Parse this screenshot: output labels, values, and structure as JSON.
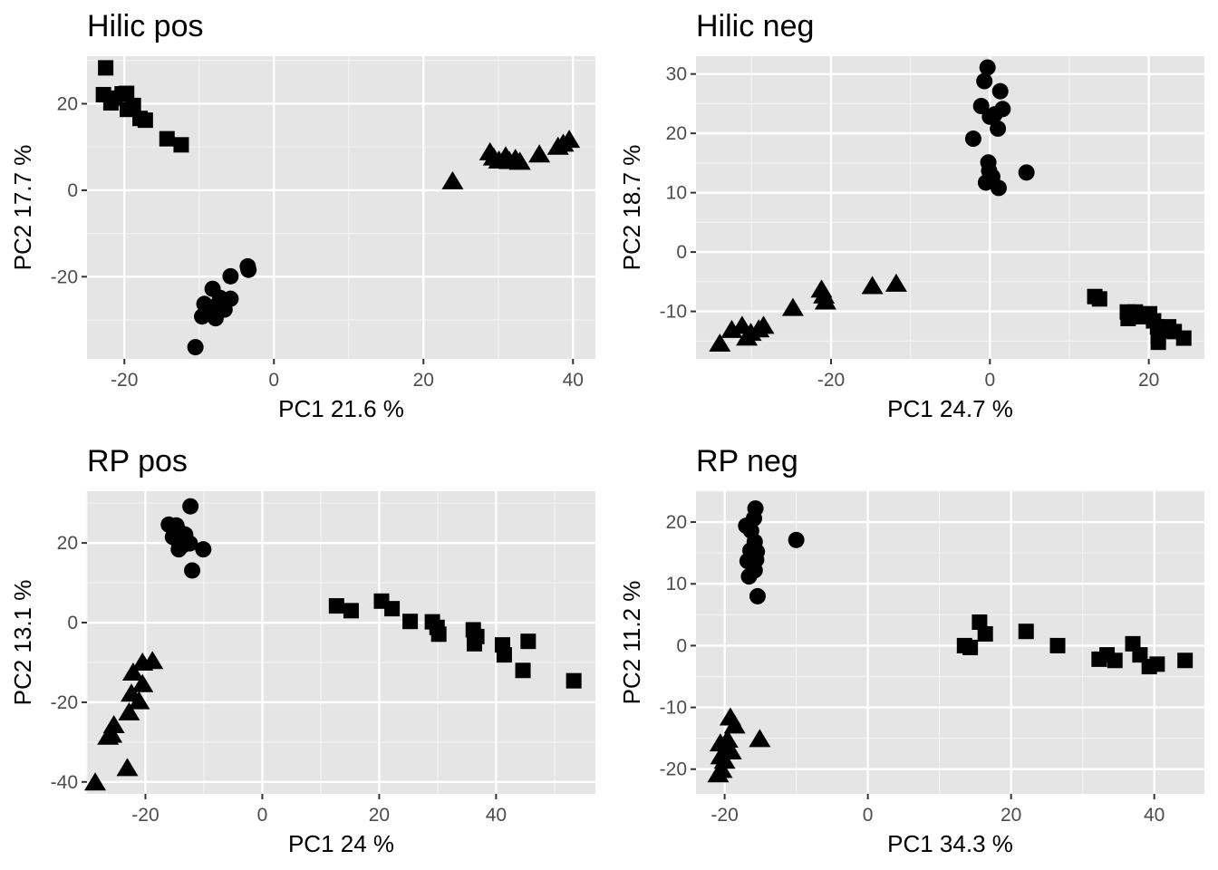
{
  "chart_data": [
    {
      "type": "scatter",
      "title": "Hilic pos",
      "xlabel": "PC1 21.6 %",
      "ylabel": "PC2 17.7 %",
      "xlim": [
        -25,
        43
      ],
      "ylim": [
        -39,
        31
      ],
      "xticks": [
        -20,
        0,
        20,
        40
      ],
      "yticks": [
        -20,
        0,
        20
      ],
      "grid": true,
      "series": [
        {
          "shape": "square",
          "points": [
            [
              -22.5,
              28.3
            ],
            [
              -22.8,
              22.1
            ],
            [
              -21.8,
              20.2
            ],
            [
              -21.3,
              21.3
            ],
            [
              -20.3,
              22.3
            ],
            [
              -19.7,
              22.4
            ],
            [
              -19.6,
              18.7
            ],
            [
              -18.8,
              19.6
            ],
            [
              -17.9,
              16.6
            ],
            [
              -17.2,
              16.2
            ],
            [
              -14.3,
              11.9
            ],
            [
              -12.4,
              10.5
            ]
          ]
        },
        {
          "shape": "triangle",
          "points": [
            [
              23.9,
              2.1
            ],
            [
              28.9,
              8.8
            ],
            [
              29.4,
              7.6
            ],
            [
              30.1,
              6.9
            ],
            [
              31.0,
              7.9
            ],
            [
              31.5,
              6.8
            ],
            [
              32.3,
              7.3
            ],
            [
              32.9,
              6.6
            ],
            [
              35.5,
              8.3
            ],
            [
              38.0,
              10.1
            ],
            [
              38.7,
              10.8
            ],
            [
              39.5,
              11.7
            ]
          ]
        },
        {
          "shape": "circle",
          "points": [
            [
              -10.5,
              -36.3
            ],
            [
              -9.6,
              -29.2
            ],
            [
              -9.3,
              -26.3
            ],
            [
              -8.8,
              -27.2
            ],
            [
              -8.2,
              -22.8
            ],
            [
              -8.0,
              -27.0
            ],
            [
              -7.8,
              -29.6
            ],
            [
              -7.2,
              -24.9
            ],
            [
              -6.6,
              -27.6
            ],
            [
              -5.8,
              -25.1
            ],
            [
              -5.8,
              -19.9
            ],
            [
              -3.4,
              -18.4
            ],
            [
              -3.5,
              -17.6
            ]
          ]
        }
      ]
    },
    {
      "type": "scatter",
      "title": "Hilic neg",
      "xlabel": "PC1 24.7 %",
      "ylabel": "PC2 18.7 %",
      "xlim": [
        -37,
        27
      ],
      "ylim": [
        -18,
        33
      ],
      "xticks": [
        -20,
        0,
        20
      ],
      "yticks": [
        -10,
        0,
        10,
        20,
        30
      ],
      "grid": true,
      "series": [
        {
          "shape": "circle",
          "points": [
            [
              -0.3,
              31.1
            ],
            [
              -0.7,
              28.8
            ],
            [
              1.3,
              27.1
            ],
            [
              -1.1,
              24.6
            ],
            [
              0.6,
              23.2
            ],
            [
              1.6,
              24.1
            ],
            [
              0.0,
              22.8
            ],
            [
              1.0,
              20.8
            ],
            [
              -2.1,
              19.1
            ],
            [
              -0.2,
              15.1
            ],
            [
              -0.1,
              13.7
            ],
            [
              4.6,
              13.4
            ],
            [
              0.3,
              12.7
            ],
            [
              -0.5,
              11.7
            ],
            [
              1.1,
              10.8
            ]
          ]
        },
        {
          "shape": "triangle",
          "points": [
            [
              -34.0,
              -15.4
            ],
            [
              -32.5,
              -13.1
            ],
            [
              -31.2,
              -12.4
            ],
            [
              -30.6,
              -14.4
            ],
            [
              -30.1,
              -13.6
            ],
            [
              -29.1,
              -13.0
            ],
            [
              -28.5,
              -12.4
            ],
            [
              -24.8,
              -9.4
            ],
            [
              -21.2,
              -6.3
            ],
            [
              -20.9,
              -7.3
            ],
            [
              -20.7,
              -8.3
            ],
            [
              -14.8,
              -5.7
            ],
            [
              -11.8,
              -5.3
            ]
          ]
        },
        {
          "shape": "square",
          "points": [
            [
              13.2,
              -7.5
            ],
            [
              13.8,
              -7.9
            ],
            [
              17.3,
              -10.1
            ],
            [
              17.4,
              -11.2
            ],
            [
              18.3,
              -10.1
            ],
            [
              18.9,
              -10.9
            ],
            [
              20.1,
              -10.4
            ],
            [
              20.6,
              -11.6
            ],
            [
              21.1,
              -12.6
            ],
            [
              21.2,
              -14.2
            ],
            [
              21.2,
              -15.2
            ],
            [
              21.8,
              -13.2
            ],
            [
              22.5,
              -12.6
            ],
            [
              23.2,
              -13.4
            ],
            [
              24.4,
              -14.5
            ]
          ]
        }
      ]
    },
    {
      "type": "scatter",
      "title": "RP pos",
      "xlabel": "PC1 24 %",
      "ylabel": "PC2 13.1 %",
      "xlim": [
        -30,
        57
      ],
      "ylim": [
        -43,
        33
      ],
      "xticks": [
        -20,
        0,
        20,
        40
      ],
      "yticks": [
        -40,
        -20,
        0,
        20
      ],
      "grid": true,
      "series": [
        {
          "shape": "circle",
          "points": [
            [
              -12.3,
              29.2
            ],
            [
              -16.0,
              24.6
            ],
            [
              -14.7,
              24.4
            ],
            [
              -14.0,
              22.6
            ],
            [
              -13.2,
              22.1
            ],
            [
              -15.3,
              21.5
            ],
            [
              -14.3,
              20.1
            ],
            [
              -13.6,
              19.4
            ],
            [
              -14.3,
              18.4
            ],
            [
              -12.4,
              19.9
            ],
            [
              -10.1,
              18.4
            ],
            [
              -12.0,
              13.1
            ]
          ]
        },
        {
          "shape": "triangle",
          "points": [
            [
              -18.8,
              -9.6
            ],
            [
              -20.5,
              -10.0
            ],
            [
              -22.1,
              -12.5
            ],
            [
              -20.5,
              -15.4
            ],
            [
              -22.4,
              -17.8
            ],
            [
              -21.1,
              -19.7
            ],
            [
              -22.8,
              -22.5
            ],
            [
              -25.4,
              -25.7
            ],
            [
              -25.8,
              -28.1
            ],
            [
              -26.4,
              -28.6
            ],
            [
              -23.1,
              -36.5
            ],
            [
              -28.6,
              -40.1
            ]
          ]
        },
        {
          "shape": "square",
          "points": [
            [
              12.7,
              4.2
            ],
            [
              15.2,
              3.0
            ],
            [
              20.4,
              5.4
            ],
            [
              22.2,
              3.5
            ],
            [
              25.3,
              0.3
            ],
            [
              29.1,
              0.2
            ],
            [
              29.9,
              -1.2
            ],
            [
              30.2,
              -2.9
            ],
            [
              36.1,
              -1.8
            ],
            [
              36.7,
              -3.5
            ],
            [
              36.3,
              -5.3
            ],
            [
              41.1,
              -5.6
            ],
            [
              41.4,
              -8.1
            ],
            [
              45.5,
              -4.7
            ],
            [
              44.6,
              -12.0
            ],
            [
              53.3,
              -14.6
            ]
          ]
        }
      ]
    },
    {
      "type": "scatter",
      "title": "RP neg",
      "xlabel": "PC1 34.3 %",
      "ylabel": "PC2 11.2 %",
      "xlim": [
        -24,
        47
      ],
      "ylim": [
        -24,
        25
      ],
      "xticks": [
        -20,
        0,
        20,
        40
      ],
      "yticks": [
        -20,
        -10,
        0,
        10,
        20
      ],
      "grid": true,
      "series": [
        {
          "shape": "circle",
          "points": [
            [
              -15.7,
              22.2
            ],
            [
              -15.9,
              20.6
            ],
            [
              -17.0,
              19.4
            ],
            [
              -16.3,
              18.6
            ],
            [
              -10.0,
              17.1
            ],
            [
              -15.8,
              16.8
            ],
            [
              -16.4,
              15.4
            ],
            [
              -15.5,
              15.2
            ],
            [
              -15.6,
              13.9
            ],
            [
              -16.8,
              13.7
            ],
            [
              -15.8,
              12.2
            ],
            [
              -16.6,
              11.2
            ],
            [
              -15.4,
              8.0
            ]
          ]
        },
        {
          "shape": "triangle",
          "points": [
            [
              -19.2,
              -11.6
            ],
            [
              -18.6,
              -12.9
            ],
            [
              -20.6,
              -15.8
            ],
            [
              -19.6,
              -15.2
            ],
            [
              -15.1,
              -15.1
            ],
            [
              -19.1,
              -17.1
            ],
            [
              -20.5,
              -17.9
            ],
            [
              -20.0,
              -18.6
            ],
            [
              -20.4,
              -20.1
            ],
            [
              -20.9,
              -20.8
            ]
          ]
        },
        {
          "shape": "square",
          "points": [
            [
              15.6,
              3.8
            ],
            [
              16.4,
              1.9
            ],
            [
              22.1,
              2.3
            ],
            [
              13.5,
              0.0
            ],
            [
              14.3,
              -0.3
            ],
            [
              26.5,
              0.0
            ],
            [
              32.3,
              -2.2
            ],
            [
              33.4,
              -1.5
            ],
            [
              34.5,
              -2.4
            ],
            [
              37.0,
              0.3
            ],
            [
              38.0,
              -1.5
            ],
            [
              39.3,
              -3.4
            ],
            [
              40.4,
              -3.0
            ],
            [
              44.3,
              -2.4
            ]
          ]
        }
      ]
    }
  ]
}
